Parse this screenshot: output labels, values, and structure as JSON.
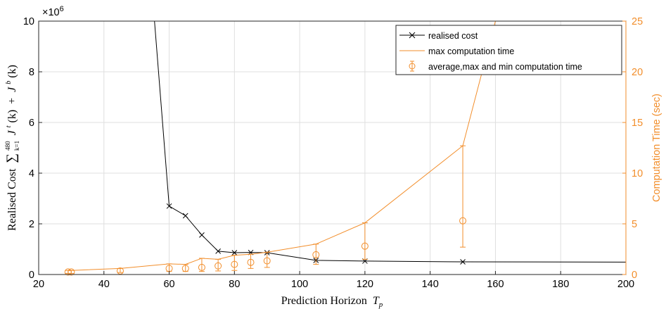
{
  "chart_data": {
    "type": "line",
    "x_axis": {
      "label": "Prediction Horizon",
      "label_symbol": "T",
      "label_sub": "p",
      "range": [
        20,
        200
      ],
      "ticks": [
        "20",
        "40",
        "60",
        "80",
        "100",
        "120",
        "140",
        "160",
        "180",
        "200"
      ]
    },
    "y_left": {
      "label_prefix": "Realised Cost",
      "label_math": "∑",
      "sum_lower": "k=1",
      "sum_upper": "480",
      "term1": "J",
      "term1_sup": "t",
      "term2": "J",
      "term2_sup": "b",
      "arg": "(k)",
      "range": [
        0,
        10000000
      ],
      "multiplier_base": "×10",
      "multiplier_exp": "6",
      "ticks": [
        "0",
        "2",
        "4",
        "6",
        "8",
        "10"
      ],
      "color": "#000000"
    },
    "y_right": {
      "label": "Computation Time (sec)",
      "range": [
        0,
        25
      ],
      "ticks": [
        "0",
        "5",
        "10",
        "15",
        "20",
        "25"
      ],
      "color": "#F28E2B"
    },
    "grid": true,
    "legend": {
      "position": "top-right",
      "entries": [
        {
          "key": "realised_cost",
          "label": "realised cost"
        },
        {
          "key": "max_time",
          "label": "max computation time"
        },
        {
          "key": "avg_time",
          "label": "average,max and min computation time"
        }
      ]
    },
    "series": [
      {
        "name": "realised cost",
        "axis": "left",
        "color": "#000000",
        "marker": "x",
        "x": [
          60,
          65,
          70,
          75,
          80,
          85,
          90,
          105,
          120,
          150,
          200
        ],
        "y": [
          2700000,
          2320000,
          1560000,
          920000,
          860000,
          870000,
          860000,
          560000,
          530000,
          500000,
          490000
        ],
        "lead_in": {
          "x": [
            55.5
          ],
          "y": [
            10000000
          ]
        },
        "marker_count": 10
      },
      {
        "name": "max computation time",
        "axis": "right",
        "color": "#F28E2B",
        "x": [
          29,
          30,
          45,
          60,
          65,
          70,
          75,
          80,
          85,
          90,
          105,
          120,
          150,
          160
        ],
        "y": [
          0.4,
          0.4,
          0.6,
          1.05,
          1.0,
          1.6,
          1.5,
          1.9,
          2.0,
          2.2,
          3.0,
          5.1,
          12.7,
          25.0
        ]
      },
      {
        "name": "average,max and min computation time",
        "axis": "right",
        "color": "#F28E2B",
        "x": [
          29,
          30,
          45,
          60,
          65,
          70,
          75,
          80,
          85,
          90,
          105,
          120,
          150
        ],
        "avg": [
          0.25,
          0.25,
          0.35,
          0.6,
          0.6,
          0.7,
          0.85,
          1.0,
          1.2,
          1.35,
          1.95,
          2.8,
          5.3
        ],
        "min": [
          0.1,
          0.1,
          0.2,
          0.3,
          0.3,
          0.3,
          0.35,
          0.4,
          0.6,
          0.7,
          1.0,
          1.5,
          2.7
        ],
        "max": [
          0.4,
          0.4,
          0.6,
          1.05,
          1.0,
          1.6,
          1.5,
          1.9,
          2.0,
          2.2,
          3.0,
          5.1,
          12.7
        ]
      }
    ]
  }
}
